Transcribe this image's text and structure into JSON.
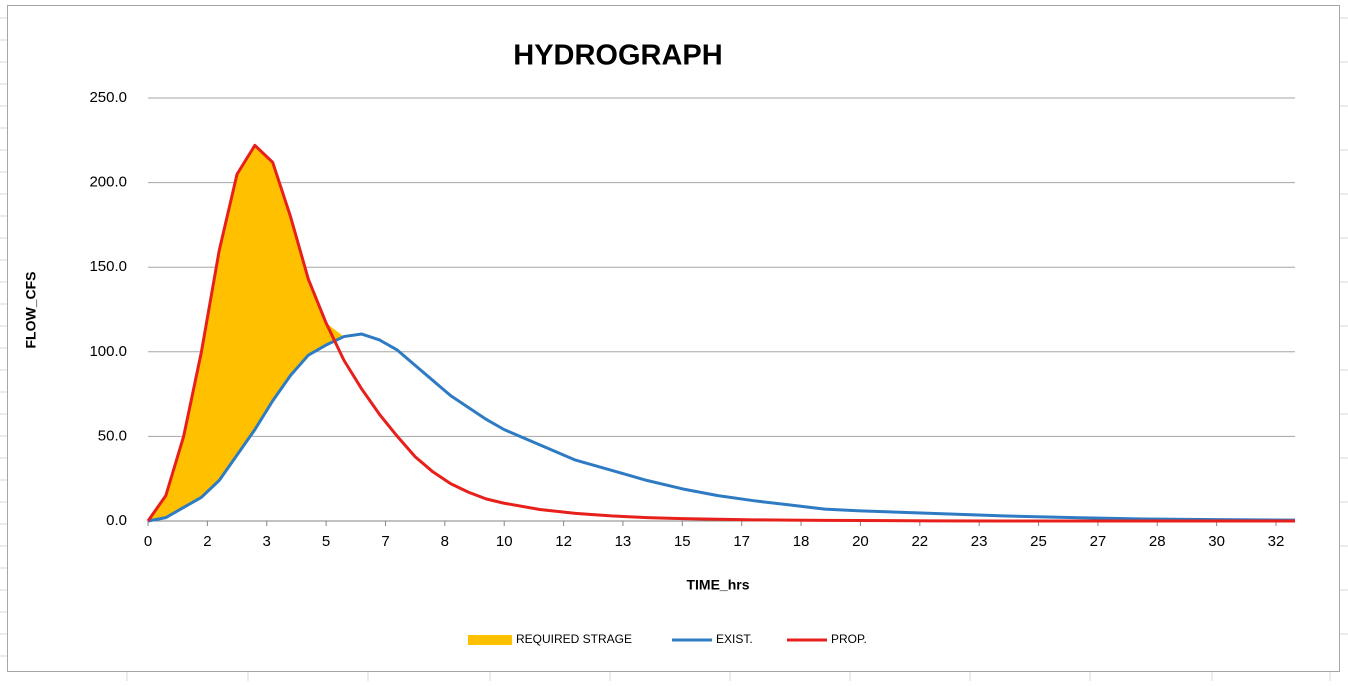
{
  "chart_data": {
    "type": "line",
    "title": "HYDROGRAPH",
    "x_label": "TIME_hrs",
    "y_label": "FLOW_CFS",
    "x": [
      0,
      0.5,
      1,
      1.5,
      2,
      2.5,
      3,
      3.5,
      4,
      4.5,
      5,
      5.5,
      6,
      6.5,
      7,
      7.5,
      8,
      8.5,
      9,
      9.5,
      10,
      11,
      12,
      13,
      14,
      15,
      16,
      17,
      18,
      19,
      20,
      22,
      24,
      26,
      28,
      30,
      32.2
    ],
    "series": [
      {
        "name": "EXIST.",
        "color": "#2e7bc4",
        "values": [
          0,
          2,
          8,
          14,
          24,
          39,
          54,
          71,
          86,
          98,
          104,
          109,
          110.5,
          107,
          101,
          92,
          83,
          74,
          67,
          60,
          54,
          45,
          36,
          30,
          24,
          19,
          15,
          12,
          9.5,
          7,
          6,
          4.5,
          3,
          2,
          1.2,
          0.8,
          0.5
        ]
      },
      {
        "name": "PROP.",
        "color": "#e8201c",
        "values": [
          0,
          15,
          50,
          100,
          160,
          205,
          222,
          212,
          180,
          143,
          117,
          95,
          78,
          63,
          50,
          38,
          29,
          22,
          17,
          13,
          10.5,
          6.8,
          4.5,
          3,
          2,
          1.4,
          1,
          0.7,
          0.5,
          0.4,
          0.3,
          0.1,
          0,
          0,
          0,
          0,
          0
        ]
      }
    ],
    "fill_between": {
      "name": "REQUIRED STRAGE",
      "color": "#ffc000"
    },
    "xlim": [
      0,
      32.2
    ],
    "xticks": [
      0,
      {
        "value": 1.667,
        "label": "2"
      },
      {
        "value": 3.333,
        "label": "3"
      },
      5,
      {
        "value": 6.667,
        "label": "7"
      },
      {
        "value": 8.333,
        "label": "8"
      },
      10,
      {
        "value": 11.667,
        "label": "12"
      },
      {
        "value": 13.333,
        "label": "13"
      },
      15,
      {
        "value": 16.667,
        "label": "17"
      },
      {
        "value": 18.333,
        "label": "18"
      },
      20,
      {
        "value": 21.667,
        "label": "22"
      },
      {
        "value": 23.333,
        "label": "23"
      },
      25,
      {
        "value": 26.667,
        "label": "27"
      },
      {
        "value": 28.333,
        "label": "28"
      },
      30,
      {
        "value": 31.667,
        "label": "32"
      }
    ],
    "ylim": [
      0,
      250
    ],
    "yticks": [
      {
        "value": 0,
        "label": "0.0"
      },
      {
        "value": 50,
        "label": "50.0"
      },
      {
        "value": 100,
        "label": "100.0"
      },
      {
        "value": 150,
        "label": "150.0"
      },
      {
        "value": 200,
        "label": "200.0"
      },
      {
        "value": 250,
        "label": "250.0"
      }
    ],
    "grid": true,
    "legend": "bottom"
  }
}
